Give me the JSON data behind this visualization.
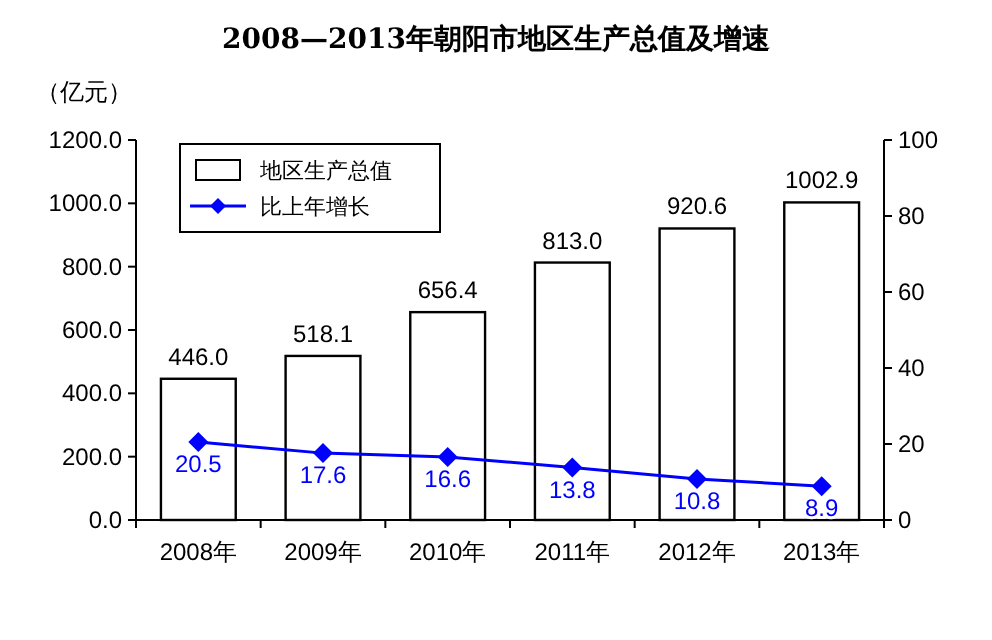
{
  "chart_data": {
    "type": "bar",
    "title": "2008—2013年朝阳市地区生产总值及增速",
    "ylabel": "（亿元）",
    "categories": [
      "2008年",
      "2009年",
      "2010年",
      "2011年",
      "2012年",
      "2013年"
    ],
    "series": [
      {
        "name": "地区生产总值",
        "color": "#ffffff",
        "values": [
          446.0,
          518.1,
          656.4,
          813.0,
          920.6,
          1002.9
        ],
        "value_labels": [
          "446.0",
          "518.1",
          "656.4",
          "813.0",
          "920.6",
          "1002.9"
        ]
      },
      {
        "name": "比上年增长",
        "type": "line",
        "axis": "y2",
        "color": "#0000ff",
        "marker": "diamond",
        "values": [
          20.5,
          17.6,
          16.6,
          13.8,
          10.8,
          8.9
        ],
        "value_labels": [
          "20.5",
          "17.6",
          "16.6",
          "13.8",
          "10.8",
          "8.9"
        ]
      }
    ],
    "ylim": [
      0,
      1200
    ],
    "yticks": [
      {
        "value": 0,
        "label": "0.0"
      },
      {
        "value": 200,
        "label": "200.0"
      },
      {
        "value": 400,
        "label": "400.0"
      },
      {
        "value": 600,
        "label": "600.0"
      },
      {
        "value": 800,
        "label": "800.0"
      },
      {
        "value": 1000,
        "label": "1000.0"
      },
      {
        "value": 1200,
        "label": "1200.0"
      }
    ],
    "y2lim": [
      0,
      100
    ],
    "y2ticks": [
      0,
      20,
      40,
      60,
      80,
      100
    ],
    "legend": "top left",
    "grid": false
  }
}
